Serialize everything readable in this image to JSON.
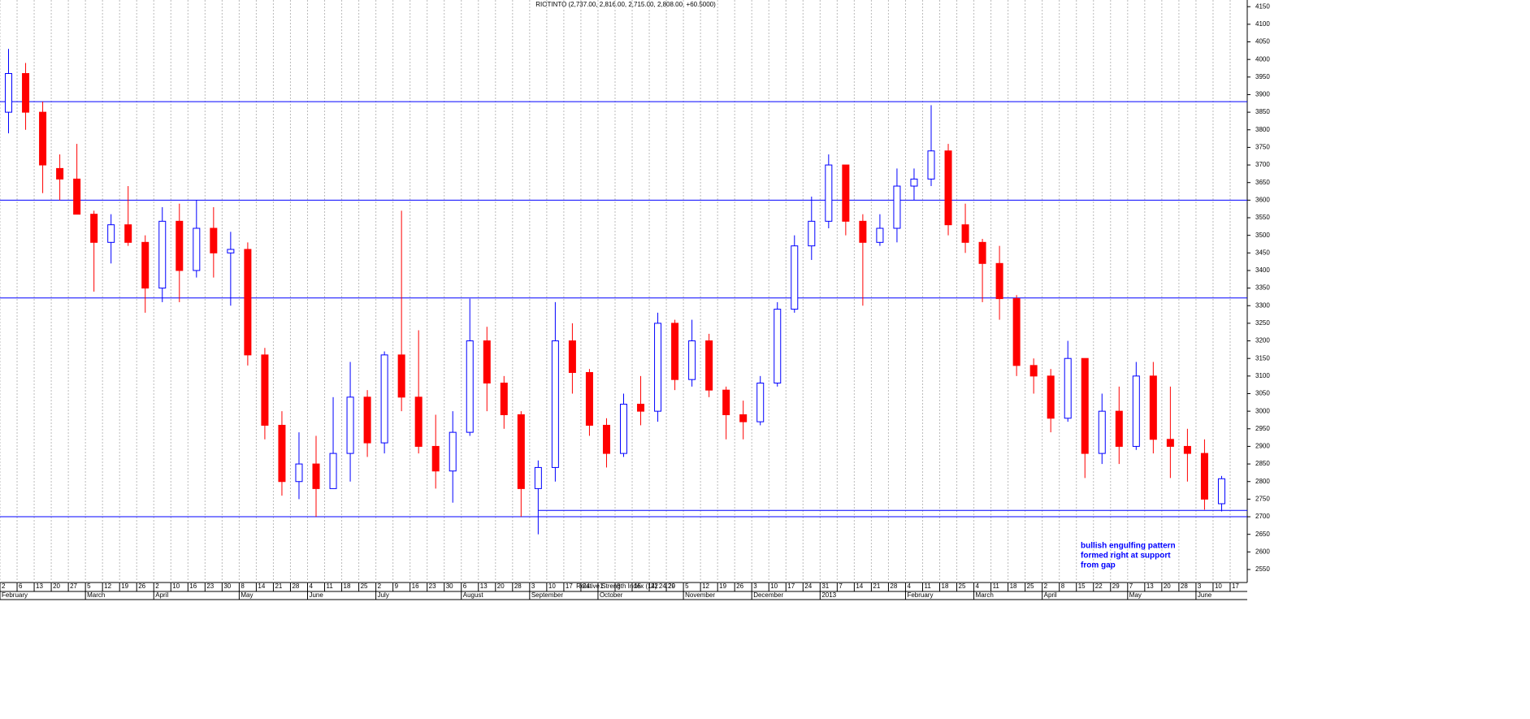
{
  "chart_data": {
    "type": "candlestick",
    "title": "RIOTINTO (2,737.00, 2,816.00, 2,715.00, 2,808.00, +60.5000)",
    "overlay_label": "Relative Strength Index (14) 24.20",
    "categories": [
      "2",
      "6",
      "13",
      "20",
      "27",
      "5",
      "12",
      "19",
      "26",
      "2",
      "10",
      "16",
      "23",
      "30",
      "8",
      "14",
      "21",
      "28",
      "4",
      "11",
      "18",
      "25",
      "2",
      "9",
      "16",
      "23",
      "30",
      "6",
      "13",
      "20",
      "28",
      "3",
      "10",
      "17",
      "24",
      "1",
      "8",
      "15",
      "22",
      "29",
      "5",
      "12",
      "19",
      "26",
      "3",
      "10",
      "17",
      "24",
      "31",
      "7",
      "14",
      "21",
      "28",
      "4",
      "11",
      "18",
      "25",
      "4",
      "11",
      "18",
      "25",
      "2",
      "8",
      "15",
      "22",
      "29",
      "7",
      "13",
      "20",
      "28",
      "3",
      "10",
      "17"
    ],
    "months": [
      "February",
      null,
      null,
      null,
      null,
      "March",
      null,
      null,
      null,
      "April",
      null,
      null,
      null,
      null,
      "May",
      null,
      null,
      null,
      "June",
      null,
      null,
      null,
      "July",
      null,
      null,
      null,
      null,
      "August",
      null,
      null,
      null,
      "September",
      null,
      null,
      null,
      "October",
      null,
      null,
      null,
      null,
      "November",
      null,
      null,
      null,
      "December",
      null,
      null,
      null,
      "2013",
      null,
      null,
      null,
      null,
      "February",
      null,
      null,
      null,
      "March",
      null,
      null,
      null,
      "April",
      null,
      null,
      null,
      null,
      "May",
      null,
      null,
      null,
      "June",
      null,
      null
    ],
    "ohlc": [
      [
        3850,
        4030,
        3790,
        3960
      ],
      [
        3960,
        3990,
        3800,
        3850
      ],
      [
        3850,
        3880,
        3620,
        3700
      ],
      [
        3690,
        3730,
        3600,
        3660
      ],
      [
        3660,
        3760,
        3570,
        3560
      ],
      [
        3560,
        3570,
        3340,
        3480
      ],
      [
        3480,
        3560,
        3420,
        3530
      ],
      [
        3530,
        3640,
        3470,
        3480
      ],
      [
        3480,
        3500,
        3280,
        3350
      ],
      [
        3350,
        3580,
        3310,
        3540
      ],
      [
        3540,
        3590,
        3310,
        3400
      ],
      [
        3400,
        3600,
        3380,
        3520
      ],
      [
        3520,
        3580,
        3380,
        3450
      ],
      [
        3450,
        3510,
        3300,
        3460
      ],
      [
        3460,
        3480,
        3130,
        3160
      ],
      [
        3160,
        3180,
        2920,
        2960
      ],
      [
        2960,
        3000,
        2760,
        2800
      ],
      [
        2800,
        2940,
        2750,
        2850
      ],
      [
        2850,
        2930,
        2700,
        2780
      ],
      [
        2780,
        3040,
        2780,
        2880
      ],
      [
        2880,
        3140,
        2800,
        3040
      ],
      [
        3040,
        3060,
        2870,
        2910
      ],
      [
        2910,
        3170,
        2880,
        3160
      ],
      [
        3160,
        3570,
        3000,
        3040
      ],
      [
        3040,
        3230,
        2880,
        2900
      ],
      [
        2900,
        2990,
        2780,
        2830
      ],
      [
        2830,
        3000,
        2740,
        2940
      ],
      [
        2940,
        3320,
        2930,
        3200
      ],
      [
        3200,
        3240,
        3000,
        3080
      ],
      [
        3080,
        3100,
        2950,
        2990
      ],
      [
        2990,
        3000,
        2700,
        2780
      ],
      [
        2780,
        2860,
        2650,
        2840
      ],
      [
        2840,
        3310,
        2800,
        3200
      ],
      [
        3200,
        3250,
        3050,
        3110
      ],
      [
        3110,
        3120,
        2930,
        2960
      ],
      [
        2960,
        2980,
        2840,
        2880
      ],
      [
        2880,
        3050,
        2870,
        3020
      ],
      [
        3020,
        3100,
        2960,
        3000
      ],
      [
        3000,
        3280,
        2970,
        3250
      ],
      [
        3250,
        3260,
        3060,
        3090
      ],
      [
        3090,
        3260,
        3070,
        3200
      ],
      [
        3200,
        3220,
        3040,
        3060
      ],
      [
        3060,
        3070,
        2920,
        2990
      ],
      [
        2990,
        3030,
        2920,
        2970
      ],
      [
        2970,
        3100,
        2960,
        3080
      ],
      [
        3080,
        3310,
        3070,
        3290
      ],
      [
        3290,
        3500,
        3280,
        3470
      ],
      [
        3470,
        3610,
        3430,
        3540
      ],
      [
        3540,
        3730,
        3520,
        3700
      ],
      [
        3700,
        3700,
        3500,
        3540
      ],
      [
        3540,
        3560,
        3300,
        3480
      ],
      [
        3480,
        3560,
        3470,
        3520
      ],
      [
        3520,
        3690,
        3480,
        3640
      ],
      [
        3640,
        3690,
        3600,
        3660
      ],
      [
        3660,
        3870,
        3640,
        3740
      ],
      [
        3740,
        3760,
        3500,
        3530
      ],
      [
        3530,
        3590,
        3450,
        3480
      ],
      [
        3480,
        3490,
        3310,
        3420
      ],
      [
        3420,
        3470,
        3260,
        3320
      ],
      [
        3320,
        3330,
        3100,
        3130
      ],
      [
        3130,
        3150,
        3050,
        3100
      ],
      [
        3100,
        3120,
        2940,
        2980
      ],
      [
        2980,
        3200,
        2970,
        3150
      ],
      [
        3150,
        3150,
        2810,
        2880
      ],
      [
        2880,
        3050,
        2850,
        3000
      ],
      [
        3000,
        3070,
        2850,
        2900
      ],
      [
        2900,
        3140,
        2890,
        3100
      ],
      [
        3100,
        3140,
        2880,
        2920
      ],
      [
        2920,
        3070,
        2810,
        2900
      ],
      [
        2900,
        2950,
        2800,
        2880
      ],
      [
        2880,
        2920,
        2720,
        2750
      ],
      [
        2737,
        2816,
        2715,
        2808
      ],
      null
    ],
    "up_color": "#0000ff",
    "down_color": "#ff0000",
    "levels": [
      3880,
      3600,
      3322,
      2718,
      2700
    ],
    "level_color": "#0000ff",
    "annotation": [
      "bullish engulfing pattern",
      "formed right at support",
      "from gap"
    ],
    "ylim": [
      2513,
      4169
    ],
    "yticks": [
      2550,
      2600,
      2650,
      2700,
      2750,
      2800,
      2850,
      2900,
      2950,
      3000,
      3050,
      3100,
      3150,
      3200,
      3250,
      3300,
      3350,
      3400,
      3450,
      3500,
      3550,
      3600,
      3650,
      3700,
      3750,
      3800,
      3850,
      3900,
      3950,
      4000,
      4050,
      4100,
      4150
    ],
    "grid": true
  }
}
